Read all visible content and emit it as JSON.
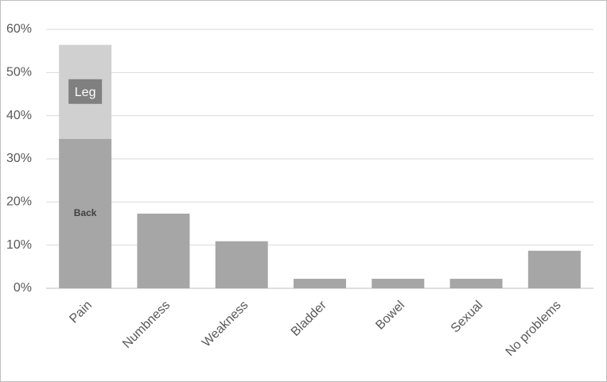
{
  "chart_data": {
    "type": "stacked-bar",
    "categories": [
      "Pain",
      "Numbness",
      "Weakness",
      "Bladder",
      "Bowel",
      "Sexual",
      "No problems"
    ],
    "series": [
      {
        "name": "Back",
        "color": "#a6a6a6",
        "values": [
          34.6,
          17.3,
          10.9,
          2.2,
          2.2,
          2.2,
          8.7
        ]
      },
      {
        "name": "Leg",
        "color": "#d0d0d0",
        "values": [
          21.8,
          null,
          null,
          null,
          null,
          null,
          null
        ]
      }
    ],
    "ylim": [
      0,
      60
    ],
    "yticks": [
      {
        "value": 0,
        "label": "0%"
      },
      {
        "value": 10,
        "label": "10%"
      },
      {
        "value": 20,
        "label": "20%"
      },
      {
        "value": 30,
        "label": "30%"
      },
      {
        "value": 40,
        "label": "40%"
      },
      {
        "value": 50,
        "label": "50%"
      },
      {
        "value": 60,
        "label": "60%"
      }
    ],
    "grid": true
  }
}
